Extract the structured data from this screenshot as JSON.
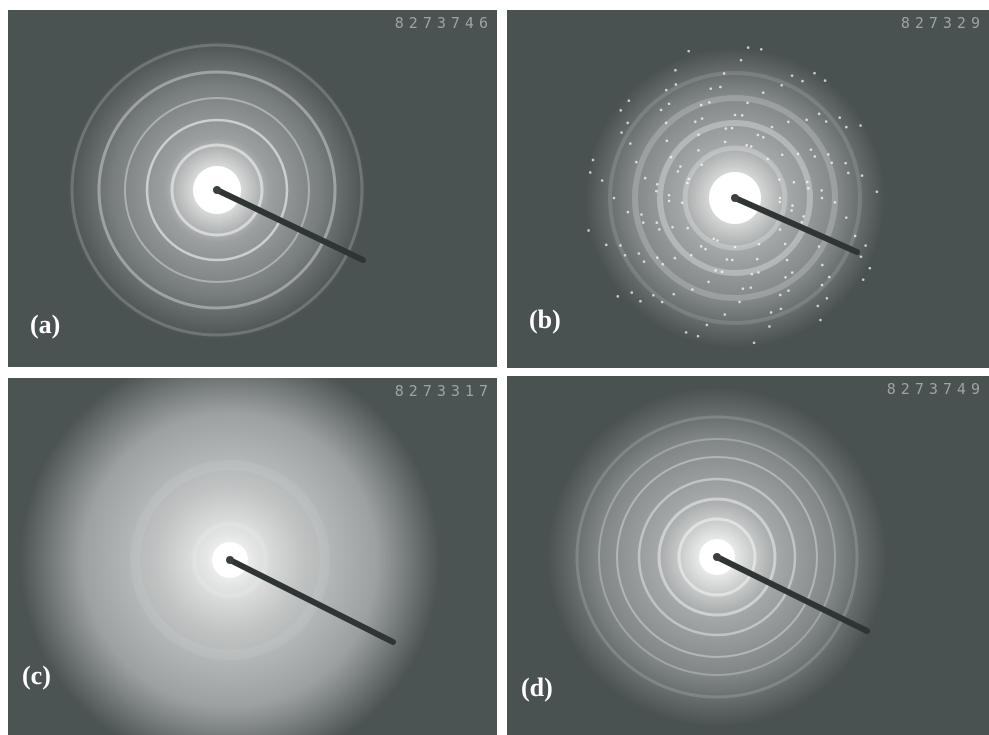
{
  "panels": [
    {
      "label": "(a)",
      "code": "8273746"
    },
    {
      "label": "(b)",
      "code": "827329"
    },
    {
      "label": "(c)",
      "code": "8273317"
    },
    {
      "label": "(d)",
      "code": "8273749"
    }
  ]
}
